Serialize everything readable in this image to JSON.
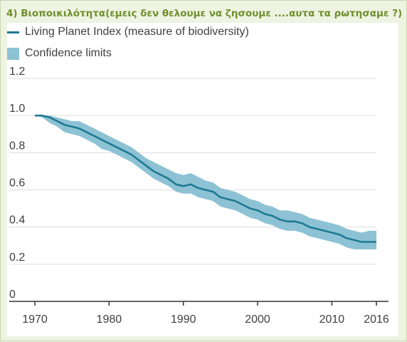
{
  "heading": "4) Βιοποικιλότητα(εμεις δεν θελουμε να ζησουμε ....αυτα τα ρωτησαμε ?)",
  "colors": {
    "line": "#1f7a93",
    "band": "#8dc2d4",
    "grid": "#dddddd",
    "axis": "#333333"
  },
  "chart_data": {
    "type": "line",
    "title": "",
    "xlabel": "",
    "ylabel": "",
    "legend_position": "top-left",
    "xlim": [
      1970,
      2016
    ],
    "ylim": [
      0,
      1.2
    ],
    "grid": true,
    "x_ticks": [
      1970,
      1980,
      1990,
      2000,
      2010,
      2016
    ],
    "y_ticks": [
      "0",
      "0.2",
      "0.4",
      "0.6",
      "0.8",
      "1.0",
      "1.2"
    ],
    "y_tick_values": [
      0,
      0.2,
      0.4,
      0.6,
      0.8,
      1.0,
      1.2
    ],
    "legend": [
      "Living Planet Index (measure of biodiversity)",
      "Confidence limits"
    ],
    "x": [
      1970,
      1971,
      1972,
      1973,
      1974,
      1975,
      1976,
      1977,
      1978,
      1979,
      1980,
      1981,
      1982,
      1983,
      1984,
      1985,
      1986,
      1987,
      1988,
      1989,
      1990,
      1991,
      1992,
      1993,
      1994,
      1995,
      1996,
      1997,
      1998,
      1999,
      2000,
      2001,
      2002,
      2003,
      2004,
      2005,
      2006,
      2007,
      2008,
      2009,
      2010,
      2011,
      2012,
      2013,
      2014,
      2015,
      2016
    ],
    "series": [
      {
        "name": "Living Planet Index (measure of biodiversity)",
        "values": [
          1.0,
          1.0,
          0.99,
          0.97,
          0.95,
          0.94,
          0.93,
          0.91,
          0.89,
          0.87,
          0.85,
          0.83,
          0.81,
          0.79,
          0.76,
          0.73,
          0.7,
          0.68,
          0.66,
          0.63,
          0.62,
          0.63,
          0.61,
          0.6,
          0.59,
          0.56,
          0.55,
          0.54,
          0.52,
          0.5,
          0.49,
          0.47,
          0.46,
          0.44,
          0.43,
          0.43,
          0.42,
          0.4,
          0.39,
          0.38,
          0.37,
          0.36,
          0.34,
          0.33,
          0.32,
          0.32,
          0.32
        ]
      },
      {
        "name": "Confidence limits",
        "lower": [
          1.0,
          0.99,
          0.96,
          0.94,
          0.91,
          0.9,
          0.89,
          0.87,
          0.85,
          0.82,
          0.81,
          0.79,
          0.77,
          0.75,
          0.72,
          0.69,
          0.66,
          0.64,
          0.62,
          0.59,
          0.58,
          0.58,
          0.56,
          0.55,
          0.54,
          0.51,
          0.5,
          0.49,
          0.47,
          0.45,
          0.44,
          0.42,
          0.41,
          0.39,
          0.38,
          0.38,
          0.37,
          0.35,
          0.34,
          0.33,
          0.32,
          0.31,
          0.29,
          0.28,
          0.28,
          0.28,
          0.28
        ],
        "upper": [
          1.0,
          1.0,
          1.0,
          0.99,
          0.98,
          0.97,
          0.97,
          0.95,
          0.93,
          0.91,
          0.89,
          0.87,
          0.85,
          0.83,
          0.8,
          0.77,
          0.75,
          0.73,
          0.71,
          0.69,
          0.68,
          0.69,
          0.67,
          0.65,
          0.64,
          0.61,
          0.6,
          0.59,
          0.57,
          0.55,
          0.54,
          0.52,
          0.51,
          0.49,
          0.49,
          0.48,
          0.47,
          0.45,
          0.44,
          0.43,
          0.42,
          0.41,
          0.39,
          0.38,
          0.37,
          0.38,
          0.38
        ]
      }
    ]
  }
}
